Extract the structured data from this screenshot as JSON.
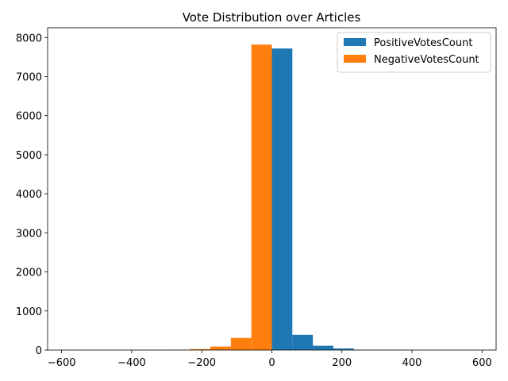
{
  "chart_data": {
    "type": "histogram",
    "title": "Vote Distribution over Articles",
    "xlabel": "",
    "ylabel": "",
    "xlim": [
      -640,
      640
    ],
    "ylim": [
      0,
      8250
    ],
    "xticks": [
      -600,
      -400,
      -200,
      0,
      200,
      400,
      600
    ],
    "yticks": [
      0,
      1000,
      2000,
      3000,
      4000,
      5000,
      6000,
      7000,
      8000
    ],
    "legend_position": "top-right",
    "series": [
      {
        "name": "PositiveVotesCount",
        "color": "#1f77b4",
        "bins": [
          {
            "x0": 0,
            "x1": 58.5,
            "value": 7720
          },
          {
            "x0": 58.5,
            "x1": 117,
            "value": 390
          },
          {
            "x0": 117,
            "x1": 175.5,
            "value": 110
          },
          {
            "x0": 175.5,
            "x1": 234,
            "value": 40
          },
          {
            "x0": 234,
            "x1": 292.5,
            "value": 10
          },
          {
            "x0": 292.5,
            "x1": 351,
            "value": 4
          },
          {
            "x0": 351,
            "x1": 409.5,
            "value": 2
          },
          {
            "x0": 409.5,
            "x1": 468,
            "value": 1
          },
          {
            "x0": 468,
            "x1": 526.5,
            "value": 1
          },
          {
            "x0": 526.5,
            "x1": 585,
            "value": 1
          }
        ]
      },
      {
        "name": "NegativeVotesCount",
        "color": "#ff7f0e",
        "bins": [
          {
            "x0": -585,
            "x1": -526.5,
            "value": 1
          },
          {
            "x0": -526.5,
            "x1": -468,
            "value": 1
          },
          {
            "x0": -468,
            "x1": -409.5,
            "value": 1
          },
          {
            "x0": -409.5,
            "x1": -351,
            "value": 2
          },
          {
            "x0": -351,
            "x1": -292.5,
            "value": 3
          },
          {
            "x0": -292.5,
            "x1": -234,
            "value": 8
          },
          {
            "x0": -234,
            "x1": -175.5,
            "value": 25
          },
          {
            "x0": -175.5,
            "x1": -117,
            "value": 90
          },
          {
            "x0": -117,
            "x1": -58.5,
            "value": 310
          },
          {
            "x0": -58.5,
            "x1": 0,
            "value": 7820
          }
        ]
      }
    ]
  }
}
